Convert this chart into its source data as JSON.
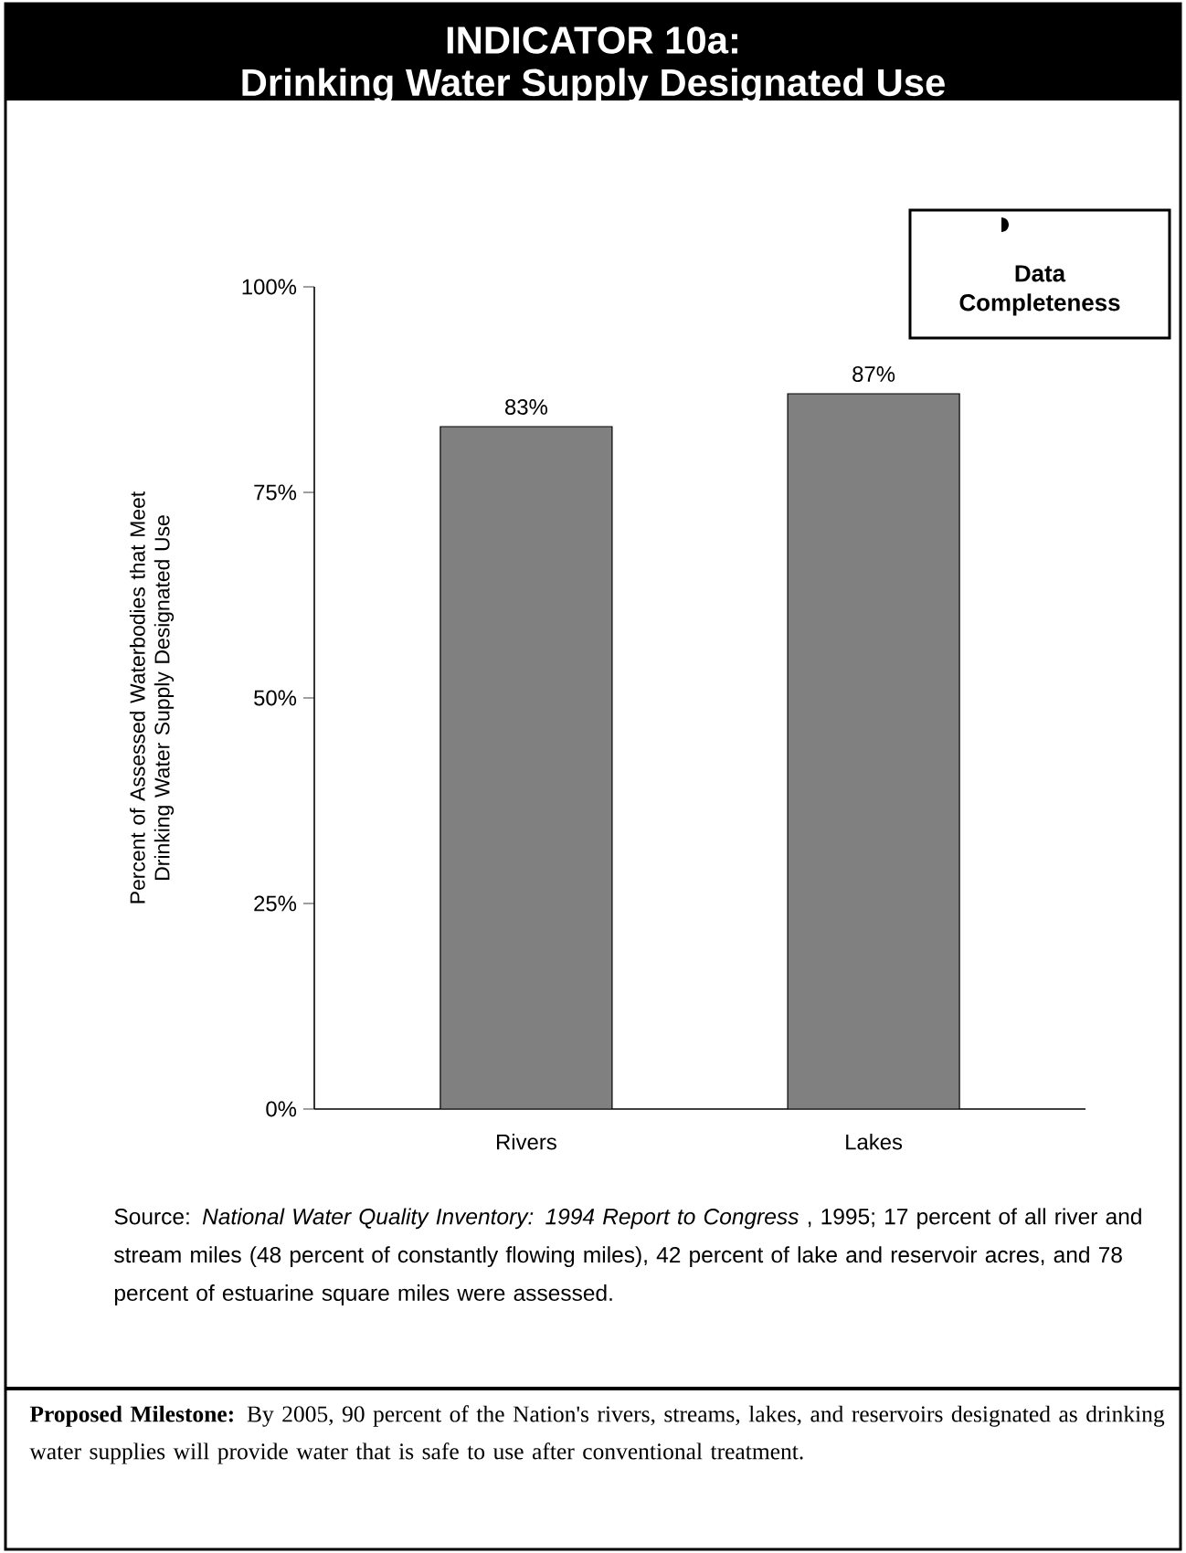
{
  "chart_data": {
    "type": "bar",
    "title": "INDICATOR 10a:",
    "subtitle": "Drinking Water Supply Designated Use",
    "ylabel": "Percent of Assessed Waterbodies that Meet Drinking Water Supply Designated Use",
    "categories": [
      "Rivers",
      "Lakes"
    ],
    "values": [
      83,
      87
    ],
    "value_labels": [
      "83%",
      "87%"
    ],
    "color": "#808080",
    "ylim": [
      0,
      100
    ],
    "yticks": [
      {
        "value": 0,
        "label": "0%"
      },
      {
        "value": 25,
        "label": "25%"
      },
      {
        "value": 50,
        "label": "50%"
      },
      {
        "value": 75,
        "label": "75%"
      },
      {
        "value": 100,
        "label": "100%"
      }
    ],
    "grid": false,
    "annotations": [
      "Data Completeness",
      "Source: *National Water Quality Inventory: 1994 Report to Congress* , 1995; 17 percent of all river and stream miles (48 percent of constantly flowing miles), 42 percent of lake and reservoir acres, and 78 percent of estuarine square miles were assessed.",
      "**Proposed Milestone:** By 2005, 90 percent of the Nation's rivers, streams, lakes, and reservoirs designated as drinking water supplies will provide water that is safe to use after conventional treatment."
    ]
  }
}
